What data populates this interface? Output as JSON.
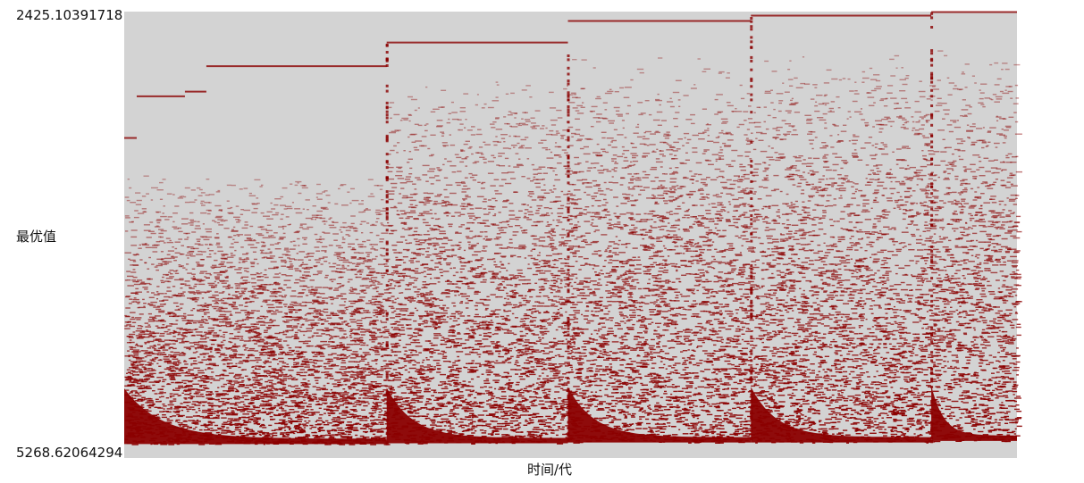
{
  "chart_data": {
    "type": "scatter",
    "title": "",
    "xlabel": "时间/代",
    "ylabel": "最优值",
    "y_top_label": "2425.10391718",
    "y_bottom_label": "5268.62064294",
    "ylim": [
      5268.62064294,
      2425.10391718
    ],
    "y_axis_inverted": true,
    "background_color": "#d3d3d3",
    "point_color": "#8b0000",
    "grid": false,
    "legend": "none",
    "x_range": [
      0,
      1
    ],
    "restart_points": [
      0.294,
      0.497,
      0.702,
      0.904
    ],
    "segments": [
      {
        "x_start": 0.0,
        "x_end": 0.294,
        "best_steps": [
          {
            "x": 0.0,
            "y": 3230
          },
          {
            "x": 0.014,
            "y": 2965
          },
          {
            "x": 0.068,
            "y": 2935
          },
          {
            "x": 0.092,
            "y": 2773
          },
          {
            "x": 0.294,
            "y": 2773
          }
        ],
        "floor_value": 5180
      },
      {
        "x_start": 0.294,
        "x_end": 0.497,
        "best_steps": [
          {
            "x": 0.294,
            "y": 2622
          },
          {
            "x": 0.497,
            "y": 2622
          }
        ],
        "floor_value": 5175
      },
      {
        "x_start": 0.497,
        "x_end": 0.702,
        "best_steps": [
          {
            "x": 0.497,
            "y": 2485
          },
          {
            "x": 0.702,
            "y": 2485
          }
        ],
        "floor_value": 5170
      },
      {
        "x_start": 0.702,
        "x_end": 0.904,
        "best_steps": [
          {
            "x": 0.702,
            "y": 2451
          },
          {
            "x": 0.904,
            "y": 2451
          }
        ],
        "floor_value": 5170
      },
      {
        "x_start": 0.904,
        "x_end": 1.0,
        "best_steps": [
          {
            "x": 0.904,
            "y": 2428
          },
          {
            "x": 1.0,
            "y": 2428
          }
        ],
        "floor_value": 5160
      }
    ]
  }
}
